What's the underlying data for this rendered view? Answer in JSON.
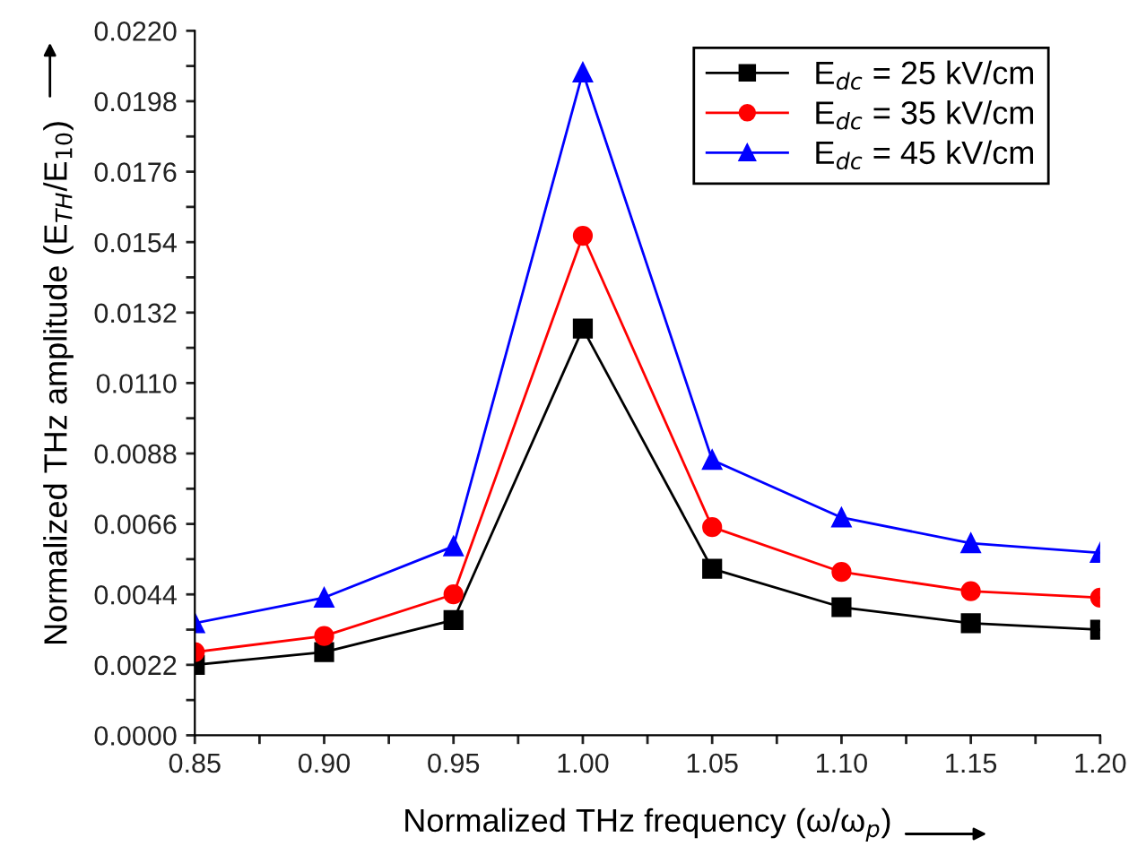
{
  "chart_data": {
    "type": "line",
    "xlabel": "Normalized THz frequency (ω/ω$_{p}$)",
    "ylabel": "Normalized THz amplitude (E$_{TH}$/E$_{10}$)",
    "x": [
      0.85,
      0.9,
      0.95,
      1.0,
      1.05,
      1.1,
      1.15,
      1.2
    ],
    "series": [
      {
        "name": "E$_{dc}$ = 25 kV/cm",
        "color": "#000000",
        "marker": "square",
        "values": [
          0.0022,
          0.0026,
          0.0036,
          0.0127,
          0.0052,
          0.004,
          0.0035,
          0.0033
        ]
      },
      {
        "name": "E$_{dc}$ = 35 kV/cm",
        "color": "#ff0000",
        "marker": "circle",
        "values": [
          0.0026,
          0.0031,
          0.0044,
          0.0156,
          0.0065,
          0.0051,
          0.0045,
          0.0043
        ]
      },
      {
        "name": "E$_{dc}$ = 45 kV/cm",
        "color": "#0000ff",
        "marker": "triangle",
        "values": [
          0.0035,
          0.0043,
          0.0059,
          0.0207,
          0.0086,
          0.0068,
          0.006,
          0.0057
        ]
      }
    ],
    "xlim": [
      0.85,
      1.2
    ],
    "ylim": [
      0.0,
      0.022
    ],
    "xticks": [
      {
        "value": 0.85,
        "label": "0.85"
      },
      {
        "value": 0.875,
        "label": null
      },
      {
        "value": 0.9,
        "label": "0.90"
      },
      {
        "value": 0.925,
        "label": null
      },
      {
        "value": 0.95,
        "label": "0.95"
      },
      {
        "value": 0.975,
        "label": null
      },
      {
        "value": 1.0,
        "label": "1.00"
      },
      {
        "value": 1.025,
        "label": null
      },
      {
        "value": 1.05,
        "label": "1.05"
      },
      {
        "value": 1.075,
        "label": null
      },
      {
        "value": 1.1,
        "label": "1.10"
      },
      {
        "value": 1.125,
        "label": null
      },
      {
        "value": 1.15,
        "label": "1.15"
      },
      {
        "value": 1.175,
        "label": null
      },
      {
        "value": 1.2,
        "label": "1.20"
      }
    ],
    "yticks": [
      {
        "value": 0.0,
        "label": "0.0000"
      },
      {
        "value": 0.0011,
        "label": null
      },
      {
        "value": 0.0022,
        "label": "0.0022"
      },
      {
        "value": 0.0033,
        "label": null
      },
      {
        "value": 0.0044,
        "label": "0.0044"
      },
      {
        "value": 0.0055,
        "label": null
      },
      {
        "value": 0.0066,
        "label": "0.0066"
      },
      {
        "value": 0.0077,
        "label": null
      },
      {
        "value": 0.0088,
        "label": "0.0088"
      },
      {
        "value": 0.0099,
        "label": null
      },
      {
        "value": 0.011,
        "label": "0.0110"
      },
      {
        "value": 0.0121,
        "label": null
      },
      {
        "value": 0.0132,
        "label": "0.0132"
      },
      {
        "value": 0.0143,
        "label": null
      },
      {
        "value": 0.0154,
        "label": "0.0154"
      },
      {
        "value": 0.0165,
        "label": null
      },
      {
        "value": 0.0176,
        "label": "0.0176"
      },
      {
        "value": 0.0187,
        "label": null
      },
      {
        "value": 0.0198,
        "label": "0.0198"
      },
      {
        "value": 0.0209,
        "label": null
      },
      {
        "value": 0.022,
        "label": "0.0220"
      }
    ],
    "grid": false,
    "legend": "top right",
    "line_style": "solid"
  }
}
